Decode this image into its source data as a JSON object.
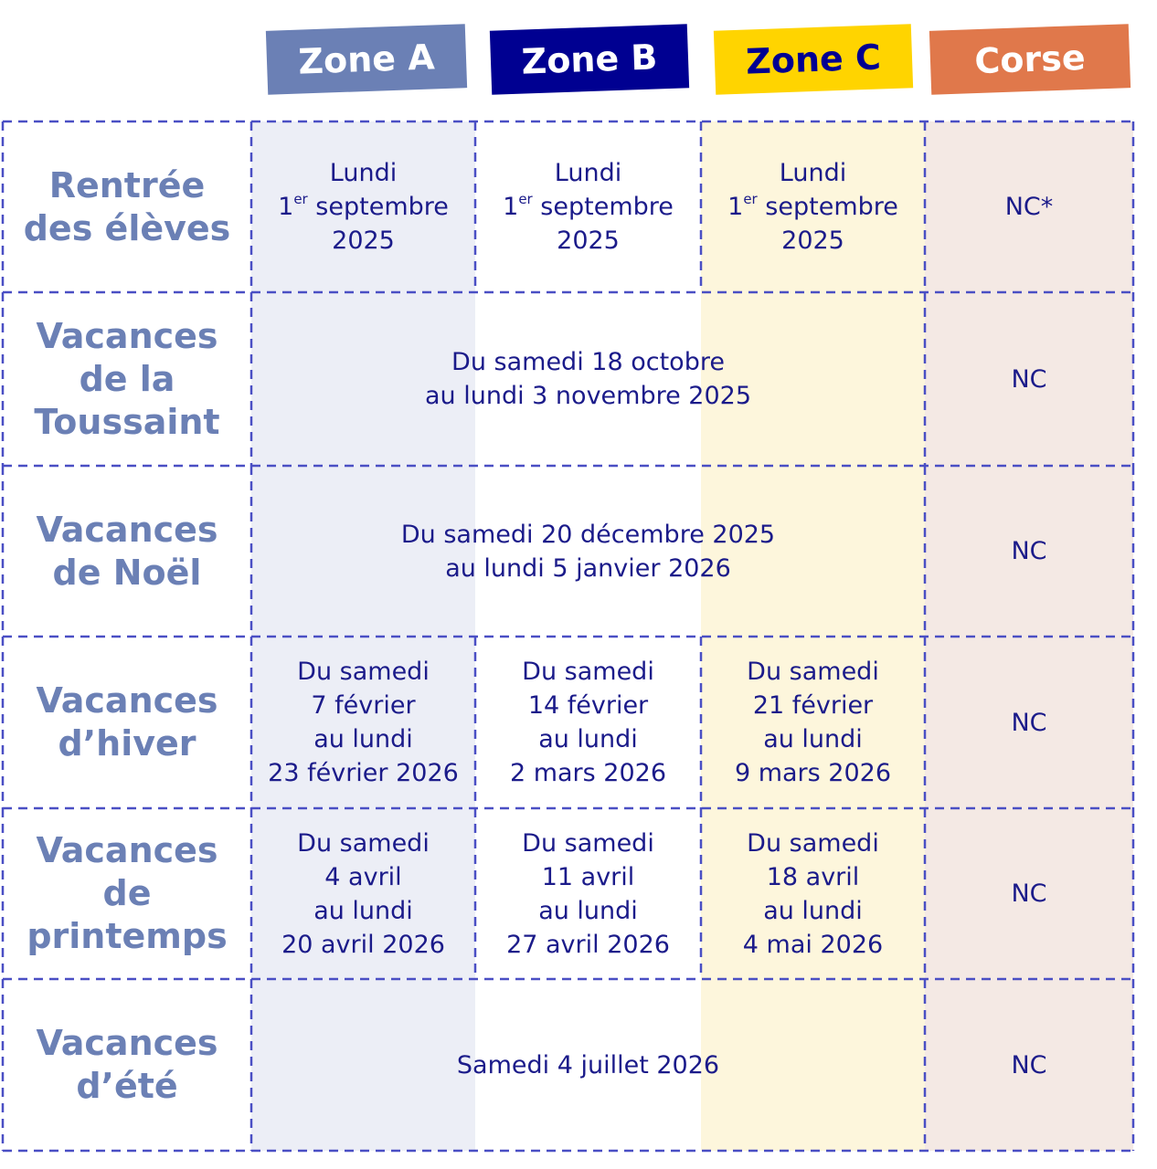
{
  "headers": [
    "Zone A",
    "Zone B",
    "Zone C",
    "Corse"
  ],
  "rows": [
    {
      "label": [
        "Rentrée",
        "des élèves"
      ],
      "zones": [
        [
          "Lundi",
          {
            "text": "1",
            "sup": "er",
            "after": " septembre"
          },
          "2025"
        ],
        [
          "Lundi",
          {
            "text": "1",
            "sup": "er",
            "after": " septembre"
          },
          "2025"
        ],
        [
          "Lundi",
          {
            "text": "1",
            "sup": "er",
            "after": " septembre"
          },
          "2025"
        ]
      ],
      "corse": [
        "NC*"
      ]
    },
    {
      "label": [
        "Vacances",
        "de la",
        "Toussaint"
      ],
      "all_zones": [
        "Du samedi 18 octobre",
        "au lundi 3 novembre 2025"
      ],
      "corse": [
        "NC"
      ]
    },
    {
      "label": [
        "Vacances",
        "de Noël"
      ],
      "all_zones": [
        "Du samedi 20 décembre 2025",
        "au lundi 5 janvier 2026"
      ],
      "corse": [
        "NC"
      ]
    },
    {
      "label": [
        "Vacances",
        "d’hiver"
      ],
      "zones": [
        [
          "Du samedi",
          "7 février",
          "au lundi",
          "23 février 2026"
        ],
        [
          "Du samedi",
          "14 février",
          "au lundi",
          "2 mars 2026"
        ],
        [
          "Du samedi",
          "21 février",
          "au lundi",
          "9 mars 2026"
        ]
      ],
      "corse": [
        "NC"
      ]
    },
    {
      "label": [
        "Vacances",
        "de",
        "printemps"
      ],
      "zones": [
        [
          "Du samedi",
          "4 avril",
          "au lundi",
          "20 avril 2026"
        ],
        [
          "Du samedi",
          "11 avril",
          "au lundi",
          "27 avril 2026"
        ],
        [
          "Du samedi",
          "18 avril",
          "au lundi",
          "4 mai 2026"
        ]
      ],
      "corse": [
        "NC"
      ]
    },
    {
      "label": [
        "Vacances",
        "d’été"
      ],
      "all_zones": [
        "Samedi 4 juillet 2026"
      ],
      "corse": [
        "NC"
      ]
    }
  ]
}
